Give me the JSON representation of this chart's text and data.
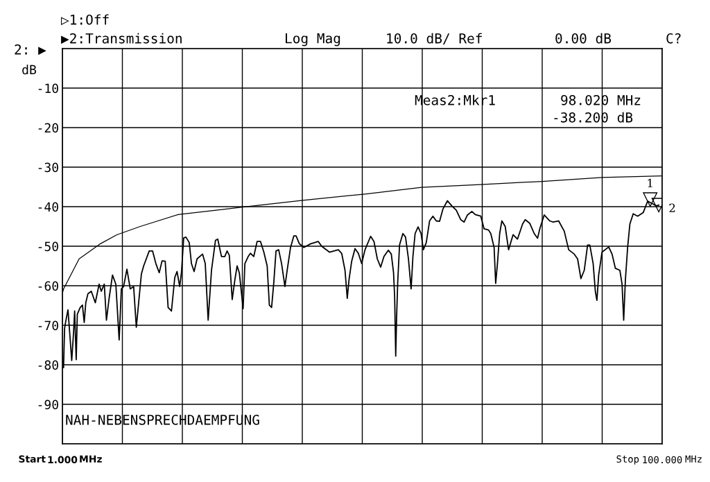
{
  "chart_data": {
    "type": "line",
    "ylabel": "dB",
    "xlim": [
      1,
      100
    ],
    "xticks": [
      {
        "value": 1,
        "label": "1.000"
      },
      {
        "value": 10.9,
        "label": null
      },
      {
        "value": 20.8,
        "label": null
      },
      {
        "value": 30.7,
        "label": null
      },
      {
        "value": 40.6,
        "label": null
      },
      {
        "value": 50.5,
        "label": null
      },
      {
        "value": 60.4,
        "label": null
      },
      {
        "value": 70.3,
        "label": null
      },
      {
        "value": 80.2,
        "label": null
      },
      {
        "value": 90.1,
        "label": null
      },
      {
        "value": 100,
        "label": "100.000"
      }
    ],
    "ylim": [
      -100,
      0
    ],
    "yticks": [
      {
        "value": 0,
        "label": null
      },
      {
        "value": -10,
        "label": "-10"
      },
      {
        "value": -20,
        "label": "-20"
      },
      {
        "value": -30,
        "label": "-30"
      },
      {
        "value": -40,
        "label": "-40"
      },
      {
        "value": -50,
        "label": "-50"
      },
      {
        "value": -60,
        "label": "-60"
      },
      {
        "value": -70,
        "label": "-70"
      },
      {
        "value": -80,
        "label": "-80"
      },
      {
        "value": -90,
        "label": "-90"
      },
      {
        "value": -100,
        "label": null
      }
    ],
    "grid": true,
    "legend": false,
    "marker": "none",
    "line_style": "solid",
    "series": [
      {
        "color": "#000000",
        "x": [
          1,
          1.2,
          3.76,
          6.14,
          7.24,
          10.0,
          13.86,
          20.1,
          26.35,
          30.75,
          40.67,
          50.95,
          60.3,
          70,
          80.2,
          90.1,
          100
        ],
        "values": [
          -61.9,
          -60.8,
          -53.2,
          -50.6,
          -49.4,
          -47.1,
          -45.0,
          -42.0,
          -40.9,
          -40.1,
          -38.4,
          -36.8,
          -35.1,
          -34.4,
          -33.6,
          -32.6,
          -32.2
        ]
      },
      {
        "color": "#000000",
        "x": [
          1.19,
          1.36,
          1.55,
          1.92,
          2.18,
          2.54,
          2.84,
          3.02,
          3.28,
          3.46,
          3.94,
          4.31,
          4.6,
          4.86,
          5.22,
          5.77,
          6.43,
          7.06,
          7.42,
          7.91,
          8.27,
          8.71,
          9.27,
          9.82,
          10.37,
          10.73,
          11.1,
          11.65,
          12.2,
          12.76,
          13.2,
          14.04,
          14.41,
          15.33,
          15.88,
          16.43,
          16.98,
          17.45,
          17.97,
          18.45,
          19.0,
          19.55,
          19.92,
          20.36,
          20.65,
          21.02,
          21.39,
          21.94,
          22.3,
          22.74,
          23.23,
          24.14,
          24.58,
          25.06,
          25.61,
          26.27,
          26.64,
          27.26,
          27.81,
          28.18,
          28.55,
          29.03,
          29.47,
          29.84,
          30.2,
          30.57,
          30.83,
          31.12,
          31.67,
          32.04,
          32.59,
          33.14,
          33.7,
          34.25,
          34.8,
          35.16,
          35.53,
          35.9,
          36.26,
          36.7,
          37.18,
          37.73,
          38.1,
          38.66,
          39.2,
          39.57,
          40.12,
          40.86,
          41.96,
          43.24,
          43.79,
          45.08,
          46.55,
          47.1,
          47.65,
          48.02,
          48.31,
          48.75,
          49.3,
          49.85,
          50.4,
          50.95,
          51.88,
          52.43,
          52.98,
          53.53,
          54.08,
          54.81,
          55.29,
          55.66,
          55.84,
          56.02,
          56.17,
          56.35,
          56.65,
          57.2,
          57.64,
          58.12,
          58.56,
          58.86,
          59.22,
          59.71,
          60.21,
          60.58,
          61.06,
          61.61,
          62.16,
          62.71,
          63.26,
          63.81,
          64.55,
          65.28,
          66.02,
          66.76,
          67.31,
          67.86,
          68.59,
          69.14,
          70.06,
          70.61,
          71.34,
          71.71,
          72.26,
          72.52,
          72.81,
          73.18,
          73.54,
          74.09,
          74.65,
          75.39,
          76.12,
          76.96,
          77.4,
          78.14,
          78.88,
          79.43,
          79.8,
          80.53,
          81.45,
          82.0,
          82.91,
          83.84,
          84.57,
          85.49,
          86.04,
          86.59,
          87.14,
          87.69,
          88.06,
          88.61,
          88.97,
          89.23,
          89.52,
          90.07,
          91.18,
          91.73,
          92.28,
          93.02,
          93.38,
          93.65,
          93.93,
          94.3,
          94.67,
          95.22,
          95.96,
          96.87,
          97.61,
          98.34,
          99.08,
          99.44
        ],
        "values": [
          -80.7,
          -70.8,
          -69.0,
          -66.1,
          -71.4,
          -78.9,
          -71.9,
          -66.4,
          -78.7,
          -67.2,
          -65.5,
          -64.9,
          -69.3,
          -64.3,
          -62.0,
          -61.4,
          -64.3,
          -59.6,
          -61.4,
          -59.6,
          -68.7,
          -63.2,
          -57.3,
          -59.6,
          -73.7,
          -60.8,
          -60.2,
          -55.8,
          -60.8,
          -60.2,
          -70.5,
          -57.0,
          -55.0,
          -51.2,
          -51.2,
          -54.4,
          -56.7,
          -53.7,
          -53.8,
          -65.5,
          -66.4,
          -57.9,
          -56.4,
          -60.2,
          -56.7,
          -47.9,
          -47.7,
          -49.1,
          -54.4,
          -56.4,
          -53.2,
          -52.0,
          -54.4,
          -68.7,
          -56.1,
          -48.5,
          -48.2,
          -52.6,
          -52.6,
          -51.2,
          -52.3,
          -63.5,
          -58.5,
          -55.0,
          -56.7,
          -62.0,
          -65.8,
          -54.4,
          -52.6,
          -51.8,
          -52.6,
          -48.8,
          -48.8,
          -51.5,
          -55.0,
          -64.9,
          -65.5,
          -59.1,
          -51.2,
          -50.9,
          -54.4,
          -60.2,
          -56.1,
          -50.3,
          -47.4,
          -47.4,
          -49.4,
          -50.3,
          -49.4,
          -48.8,
          -50.0,
          -51.5,
          -50.9,
          -51.8,
          -56.1,
          -63.2,
          -58.5,
          -53.8,
          -50.6,
          -51.8,
          -54.4,
          -50.9,
          -47.5,
          -48.8,
          -53.2,
          -55.3,
          -52.6,
          -51.0,
          -52.0,
          -56.7,
          -62.6,
          -77.8,
          -67.8,
          -59.1,
          -49.7,
          -46.8,
          -47.7,
          -53.2,
          -60.8,
          -52.6,
          -46.8,
          -45.1,
          -46.8,
          -50.9,
          -49.1,
          -43.6,
          -42.4,
          -43.6,
          -43.7,
          -40.6,
          -38.5,
          -39.8,
          -40.9,
          -43.3,
          -43.9,
          -42.1,
          -41.2,
          -42.0,
          -42.4,
          -45.6,
          -45.9,
          -46.8,
          -50.3,
          -59.4,
          -54.4,
          -46.8,
          -43.6,
          -45.0,
          -50.9,
          -47.1,
          -48.2,
          -44.4,
          -43.3,
          -44.2,
          -46.8,
          -48.0,
          -45.6,
          -42.1,
          -43.6,
          -43.9,
          -43.6,
          -46.2,
          -50.9,
          -52.0,
          -53.2,
          -58.2,
          -56.1,
          -49.7,
          -49.7,
          -54.4,
          -61.4,
          -63.7,
          -57.3,
          -51.5,
          -50.2,
          -52.0,
          -55.6,
          -56.1,
          -59.6,
          -68.7,
          -58.5,
          -50.3,
          -44.4,
          -41.8,
          -42.4,
          -41.5,
          -38.6,
          -39.2,
          -39.8,
          -39.6
        ]
      }
    ],
    "annotations": [
      "▷1:Off",
      "▶2:Transmission",
      "Log Mag",
      "10.0 dB/ Ref",
      "0.00 dB",
      "C?",
      "Meas2:Mkr1",
      "98.020 MHz",
      "-38.200 dB",
      "NAH-NEBENSPRECHDAEMPFUNG",
      "2: ▶",
      "Start",
      "MHz",
      "Stop",
      "MHz",
      {
        "text": "1",
        "x": 98.02,
        "y": -38.2
      },
      {
        "text": "2",
        "x": 99.44,
        "y": -39.6
      }
    ]
  }
}
